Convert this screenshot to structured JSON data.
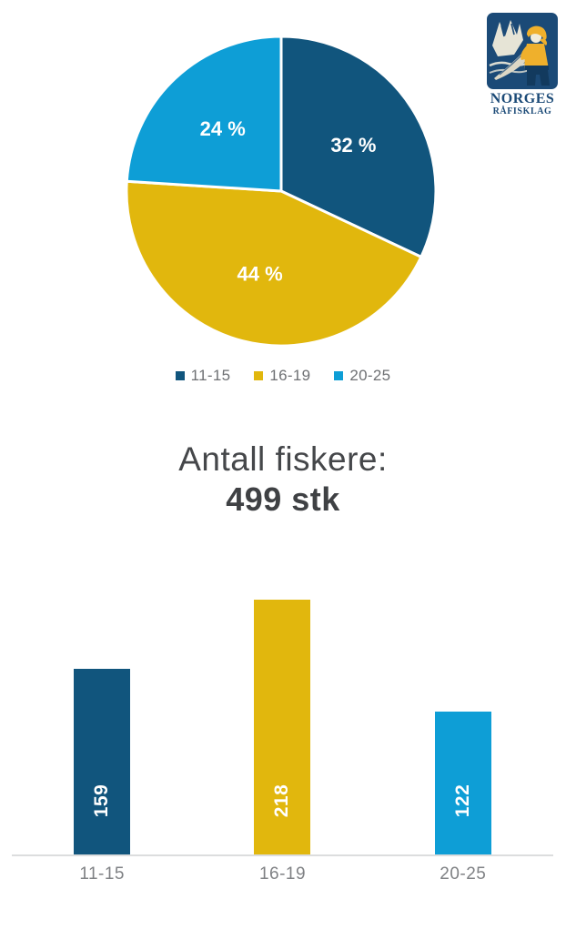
{
  "logo": {
    "alt": "Norges Råfisklag",
    "line1": "NORGES",
    "line2": "RÅFISKLAG",
    "colors": {
      "navy": "#1b4a77",
      "yellow": "#efb02c",
      "cream": "#f1ecdb",
      "fish": "#ddd8c6"
    }
  },
  "summary": {
    "line1": "Antall fiskere:",
    "count": "499 stk"
  },
  "palette": {
    "dark_blue": "#11557d",
    "yellow": "#e1b70d",
    "light_blue": "#0e9ed6",
    "white": "#ffffff"
  },
  "chart_data": [
    {
      "type": "pie",
      "title": "",
      "categories": [
        "11-15",
        "16-19",
        "20-25"
      ],
      "values": [
        32,
        44,
        24
      ],
      "labels": [
        "32 %",
        "44 %",
        "24 %"
      ],
      "colors": [
        "#11557d",
        "#e1b70d",
        "#0e9ed6"
      ],
      "start_angle_deg": 0,
      "direction": "clockwise",
      "slice_gap_stroke": "#ffffff",
      "legend_position": "bottom"
    },
    {
      "type": "bar",
      "title": "",
      "categories": [
        "11-15",
        "16-19",
        "20-25"
      ],
      "values": [
        159,
        218,
        122
      ],
      "value_labels": [
        "159",
        "218",
        "122"
      ],
      "colors": [
        "#11557d",
        "#e1b70d",
        "#0e9ed6"
      ],
      "xlabel": "",
      "ylabel": "",
      "ylim": [
        0,
        235
      ],
      "grid": false,
      "value_label_rotation_deg": -90,
      "value_label_position": "inside-bottom"
    }
  ]
}
